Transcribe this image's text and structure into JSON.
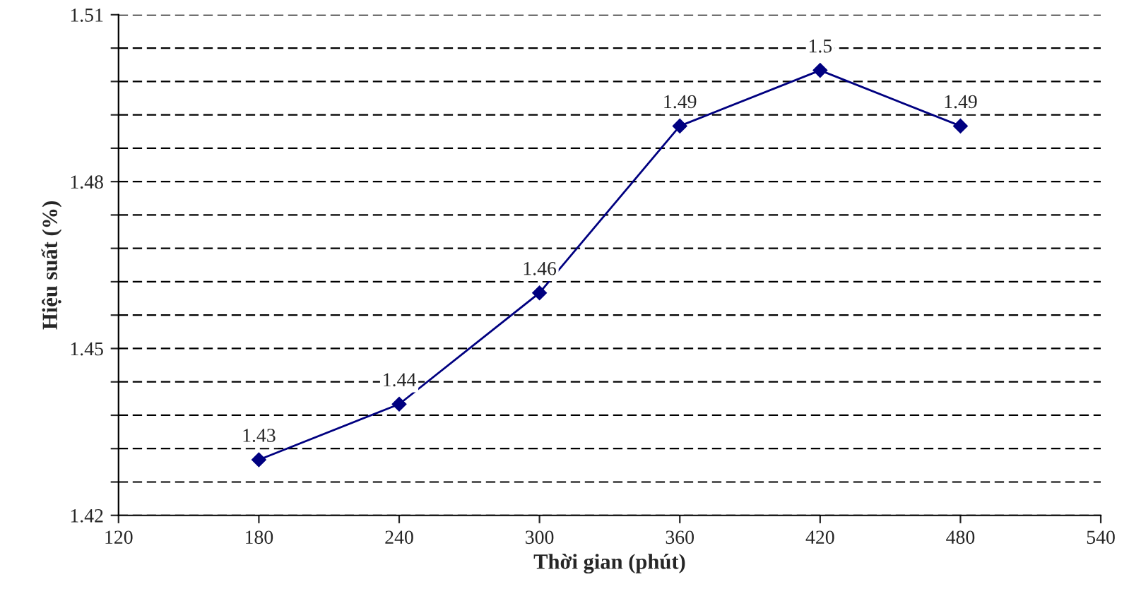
{
  "chart_data": {
    "type": "line",
    "xlabel": "Thời gian (phút)",
    "ylabel": "Hiệu suất (%)",
    "x": [
      180,
      240,
      300,
      360,
      420,
      480
    ],
    "series": [
      {
        "color": "#000080",
        "values": [
          1.43,
          1.44,
          1.46,
          1.49,
          1.5,
          1.49
        ]
      }
    ],
    "xlim": [
      120,
      540
    ],
    "xticks": [
      120,
      180,
      240,
      300,
      360,
      420,
      480,
      540
    ],
    "ylim": [
      1.42,
      1.51
    ],
    "yticks": [
      1.42,
      {
        "value": 1.426,
        "label": null
      },
      {
        "value": 1.432,
        "label": null
      },
      {
        "value": 1.438,
        "label": null
      },
      {
        "value": 1.444,
        "label": null
      },
      1.45,
      {
        "value": 1.456,
        "label": null
      },
      {
        "value": 1.462,
        "label": null
      },
      {
        "value": 1.468,
        "label": null
      },
      {
        "value": 1.474,
        "label": null
      },
      1.48,
      {
        "value": 1.486,
        "label": null
      },
      {
        "value": 1.492,
        "label": null
      },
      {
        "value": 1.498,
        "label": null
      },
      {
        "value": 1.504,
        "label": null
      },
      1.51
    ],
    "grid": "y",
    "marker": "diamond",
    "line_style": "solid",
    "data_labels": true,
    "legend": false
  }
}
